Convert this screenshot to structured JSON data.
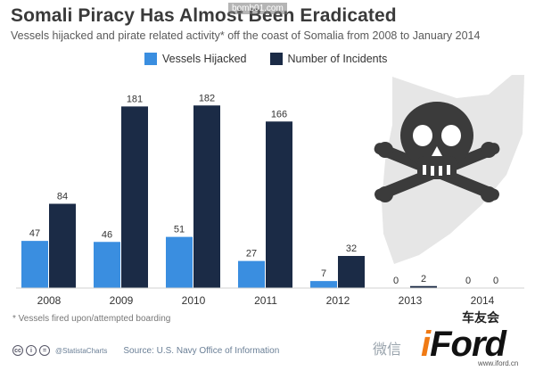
{
  "header": {
    "title": "Somali Piracy Has Almost Been Eradicated",
    "subtitle": "Vessels hijacked and pirate related activity* off the coast of Somalia from 2008 to January 2014",
    "watermark": "bomb01.com"
  },
  "legend": [
    {
      "label": "Vessels Hijacked",
      "color": "#3a8ee0"
    },
    {
      "label": "Number of Incidents",
      "color": "#1b2b46"
    }
  ],
  "chart_data": {
    "type": "bar",
    "categories": [
      "2008",
      "2009",
      "2010",
      "2011",
      "2012",
      "2013",
      "2014"
    ],
    "series": [
      {
        "name": "Vessels Hijacked",
        "color": "#3a8ee0",
        "values": [
          47,
          46,
          51,
          27,
          7,
          0,
          0
        ]
      },
      {
        "name": "Number of Incidents",
        "color": "#1b2b46",
        "values": [
          84,
          181,
          182,
          166,
          32,
          2,
          0
        ]
      }
    ],
    "ylim": [
      0,
      200
    ],
    "grid": false,
    "legend_position": "top"
  },
  "footnote": "* Vessels fired upon/attempted boarding",
  "footer": {
    "cc_icons": [
      "cc-icon",
      "by-icon",
      "nd-icon"
    ],
    "brand": "@StatistaCharts",
    "source": "Source: U.S. Navy Office of Information"
  },
  "watermarks": {
    "wechat": "微信",
    "site_cn": "车友会",
    "site_mark_i": "i",
    "site_mark": "Ford",
    "site_url": "www.iford.cn"
  }
}
